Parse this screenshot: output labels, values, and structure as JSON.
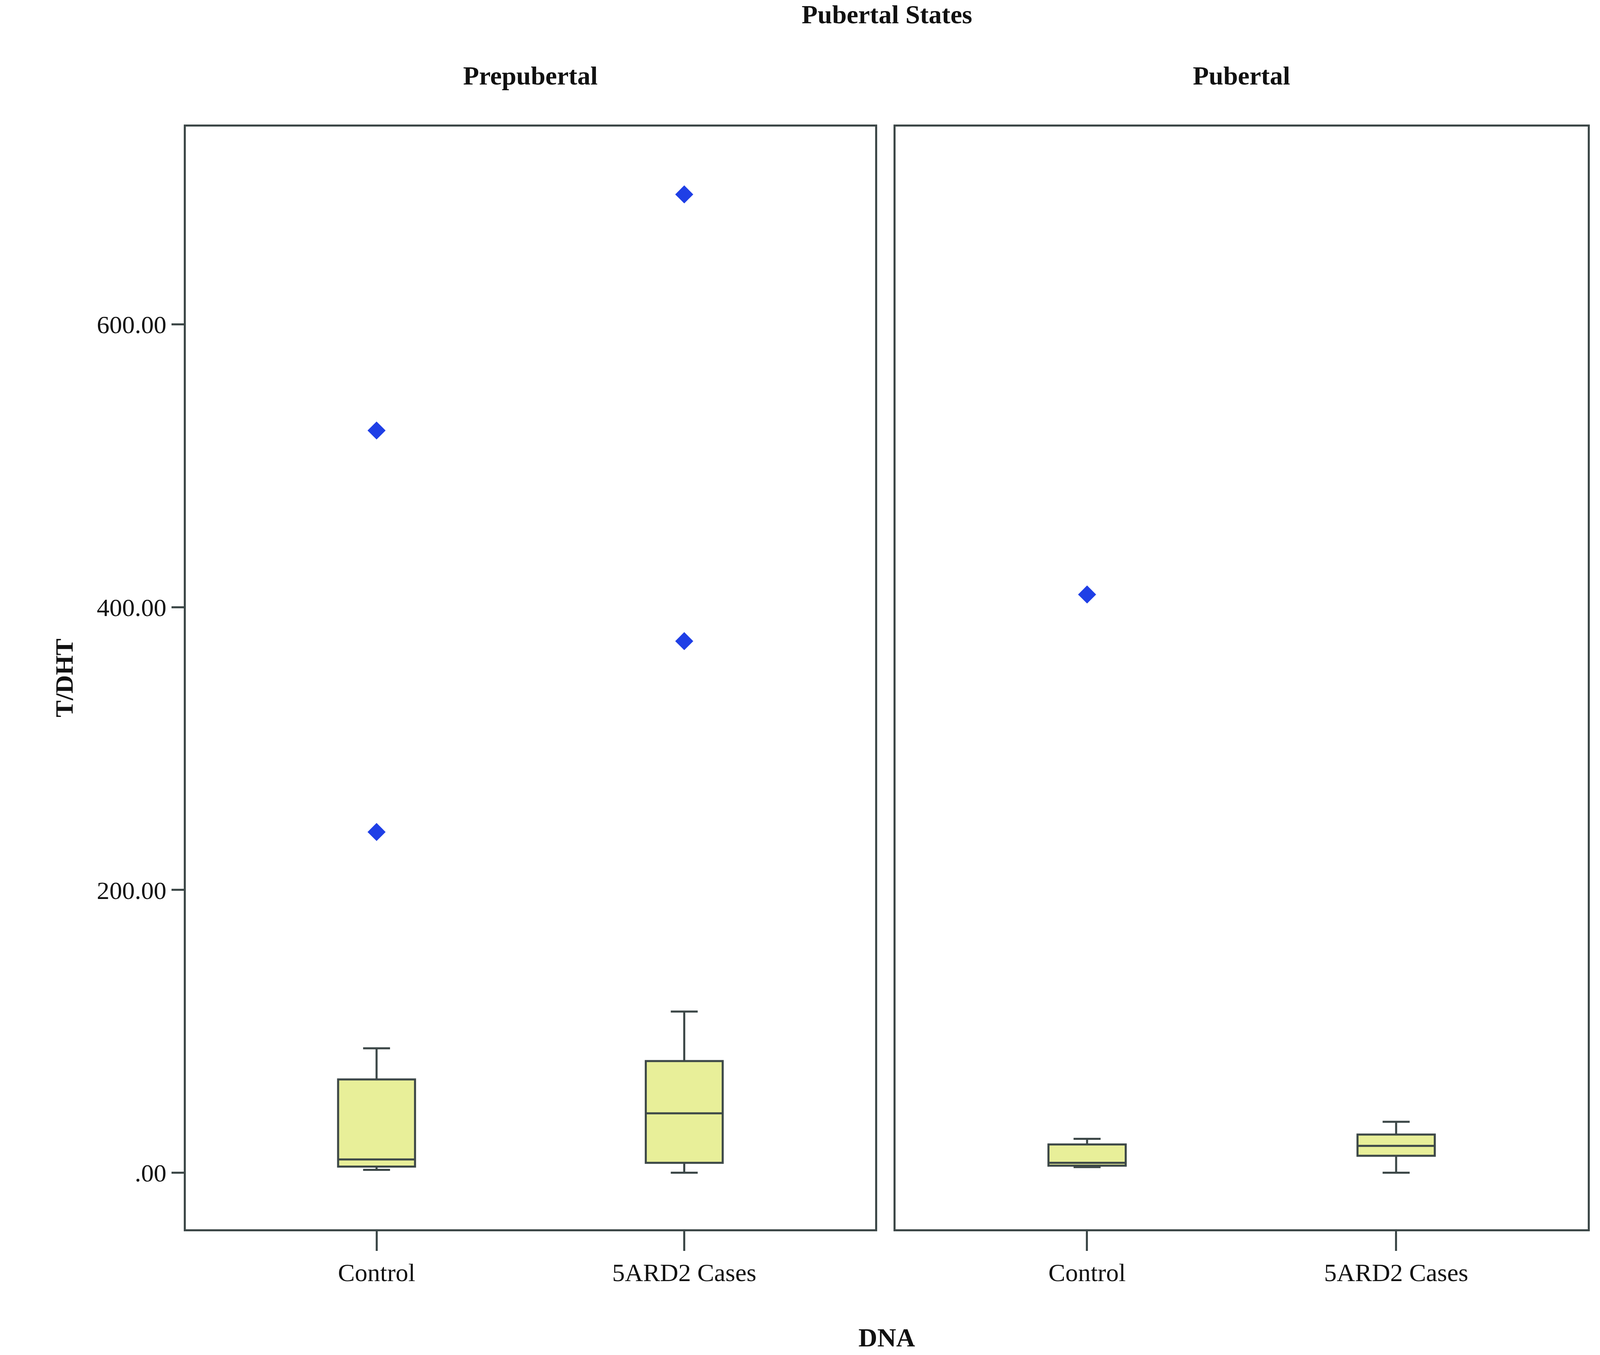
{
  "chart_data": {
    "type": "box",
    "title": "Pubertal States",
    "xlabel": "DNA",
    "ylabel": "T/DHT",
    "ylim": [
      -40,
      740
    ],
    "yticks": [
      {
        "value": 0,
        "label": ".00"
      },
      {
        "value": 200,
        "label": "200.00"
      },
      {
        "value": 400,
        "label": "400.00"
      },
      {
        "value": 600,
        "label": "600.00"
      }
    ],
    "color": "#e8ef99",
    "marker": "diamond",
    "outlier_color": "#1f3fe6",
    "panels": [
      {
        "title": "Prepubertal",
        "categories": [
          "Control",
          "5ARD2 Cases"
        ],
        "min": [
          2,
          0
        ],
        "q1": [
          4.3,
          7
        ],
        "median": [
          9.4,
          42
        ],
        "q3": [
          66,
          79
        ],
        "max": [
          88,
          114
        ],
        "outliers": [
          [
            525,
            241
          ],
          [
            692,
            376
          ]
        ]
      },
      {
        "title": "Pubertal",
        "categories": [
          "Control",
          "5ARD2 Cases"
        ],
        "min": [
          4,
          0
        ],
        "q1": [
          5,
          12
        ],
        "median": [
          7,
          19
        ],
        "q3": [
          20,
          27
        ],
        "max": [
          24,
          36
        ],
        "outliers": [
          [
            409
          ],
          []
        ]
      }
    ]
  }
}
